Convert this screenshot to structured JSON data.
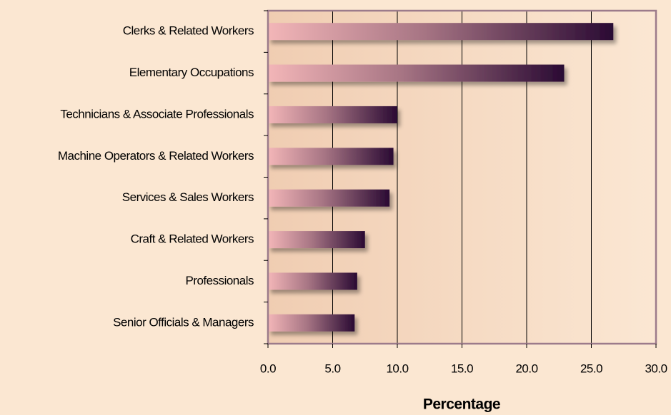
{
  "chart_data": {
    "type": "bar",
    "orientation": "horizontal",
    "x_label": "Percentage",
    "categories": [
      "Clerks & Related  Workers",
      "Elementary Occupations",
      "Technicians & Associate Professionals",
      "Machine Operators & Related Workers",
      "Services & Sales Workers",
      "Craft & Related Workers",
      "Professionals",
      "Senior Officials & Managers"
    ],
    "values": [
      26.7,
      22.9,
      10.0,
      9.7,
      9.4,
      7.5,
      6.9,
      6.7
    ],
    "color_start": "#f3b6b8",
    "color_end": "#2a0a33",
    "xlim": [
      0,
      30
    ],
    "xticks": [
      {
        "value": 0,
        "label": "0.0"
      },
      {
        "value": 5,
        "label": "5.0"
      },
      {
        "value": 10,
        "label": "10.0"
      },
      {
        "value": 15,
        "label": "15.0"
      },
      {
        "value": 20,
        "label": "20.0"
      },
      {
        "value": 25,
        "label": "25.0"
      },
      {
        "value": 30,
        "label": "30.0"
      }
    ],
    "grid": true
  }
}
